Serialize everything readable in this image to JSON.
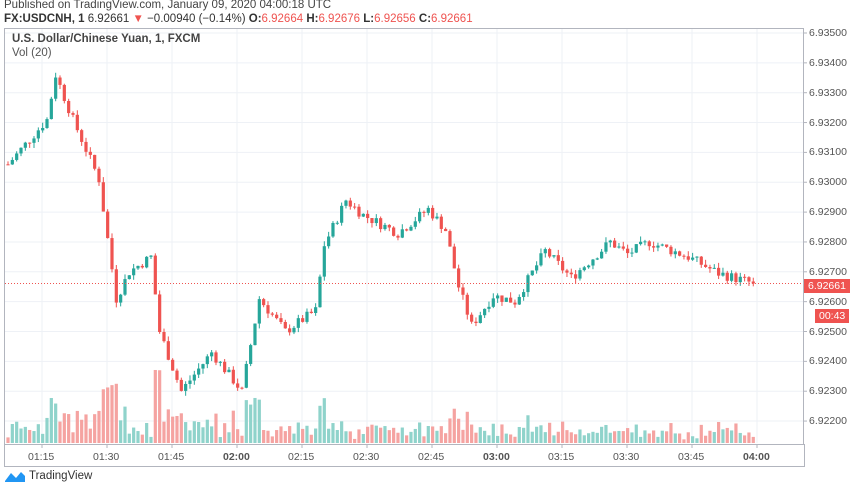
{
  "header": {
    "published": "Published on TradingView.com, January 09, 2020 04:00:18 UTC",
    "symbol": "FX:USDCNH, 1",
    "last": "6.92661",
    "change": "−0.00940 (−0.14%)",
    "o_label": "O:",
    "o": "6.92664",
    "h_label": "H:",
    "h": "6.92676",
    "l_label": "L:",
    "l": "6.92656",
    "c_label": "C:",
    "c": "6.92661"
  },
  "chart": {
    "title": "U.S. Dollar/Chinese Yuan, 1, FXCM",
    "volume_label": "Vol (20)",
    "price_tag": "6.92661",
    "countdown": "00:43"
  },
  "footer": {
    "brand": "TradingView"
  },
  "colors": {
    "up": "#26a69a",
    "down": "#ef5350",
    "up_vol": "#8fd3cb",
    "down_vol": "#f5a3a1",
    "grid": "#eef1f6"
  },
  "chart_data": {
    "type": "candlestick",
    "interval": "1 min",
    "y_ticks": [
      "6.93500",
      "6.93400",
      "6.93300",
      "6.93200",
      "6.93100",
      "6.93000",
      "6.92900",
      "6.92800",
      "6.92700",
      "6.92600",
      "6.92500",
      "6.92400",
      "6.92300",
      "6.92200"
    ],
    "x_ticks": [
      "01:15",
      "01:30",
      "01:45",
      "02:00",
      "02:15",
      "02:30",
      "02:45",
      "03:00",
      "03:15",
      "03:30",
      "03:45",
      "04:00"
    ],
    "ylim": [
      6.9217,
      6.9356
    ],
    "close_path_min_price": [
      [
        0,
        6.9306
      ],
      [
        9,
        6.9321
      ],
      [
        11,
        6.9336
      ],
      [
        15,
        6.9321
      ],
      [
        21,
        6.9301
      ],
      [
        25,
        6.9261
      ],
      [
        28,
        6.927
      ],
      [
        33,
        6.9275
      ],
      [
        35,
        6.925
      ],
      [
        40,
        6.923
      ],
      [
        47,
        6.9243
      ],
      [
        54,
        6.923
      ],
      [
        58,
        6.9261
      ],
      [
        64,
        6.925
      ],
      [
        71,
        6.9257
      ],
      [
        73,
        6.9279
      ],
      [
        78,
        6.9294
      ],
      [
        82,
        6.9289
      ],
      [
        90,
        6.9283
      ],
      [
        97,
        6.9291
      ],
      [
        101,
        6.9284
      ],
      [
        104,
        6.9265
      ],
      [
        107,
        6.9252
      ],
      [
        112,
        6.9262
      ],
      [
        117,
        6.926
      ],
      [
        124,
        6.9277
      ],
      [
        130,
        6.9268
      ],
      [
        139,
        6.928
      ],
      [
        143,
        6.9276
      ],
      [
        148,
        6.928
      ],
      [
        157,
        6.9275
      ],
      [
        164,
        6.92695
      ],
      [
        172,
        6.92661
      ]
    ]
  }
}
